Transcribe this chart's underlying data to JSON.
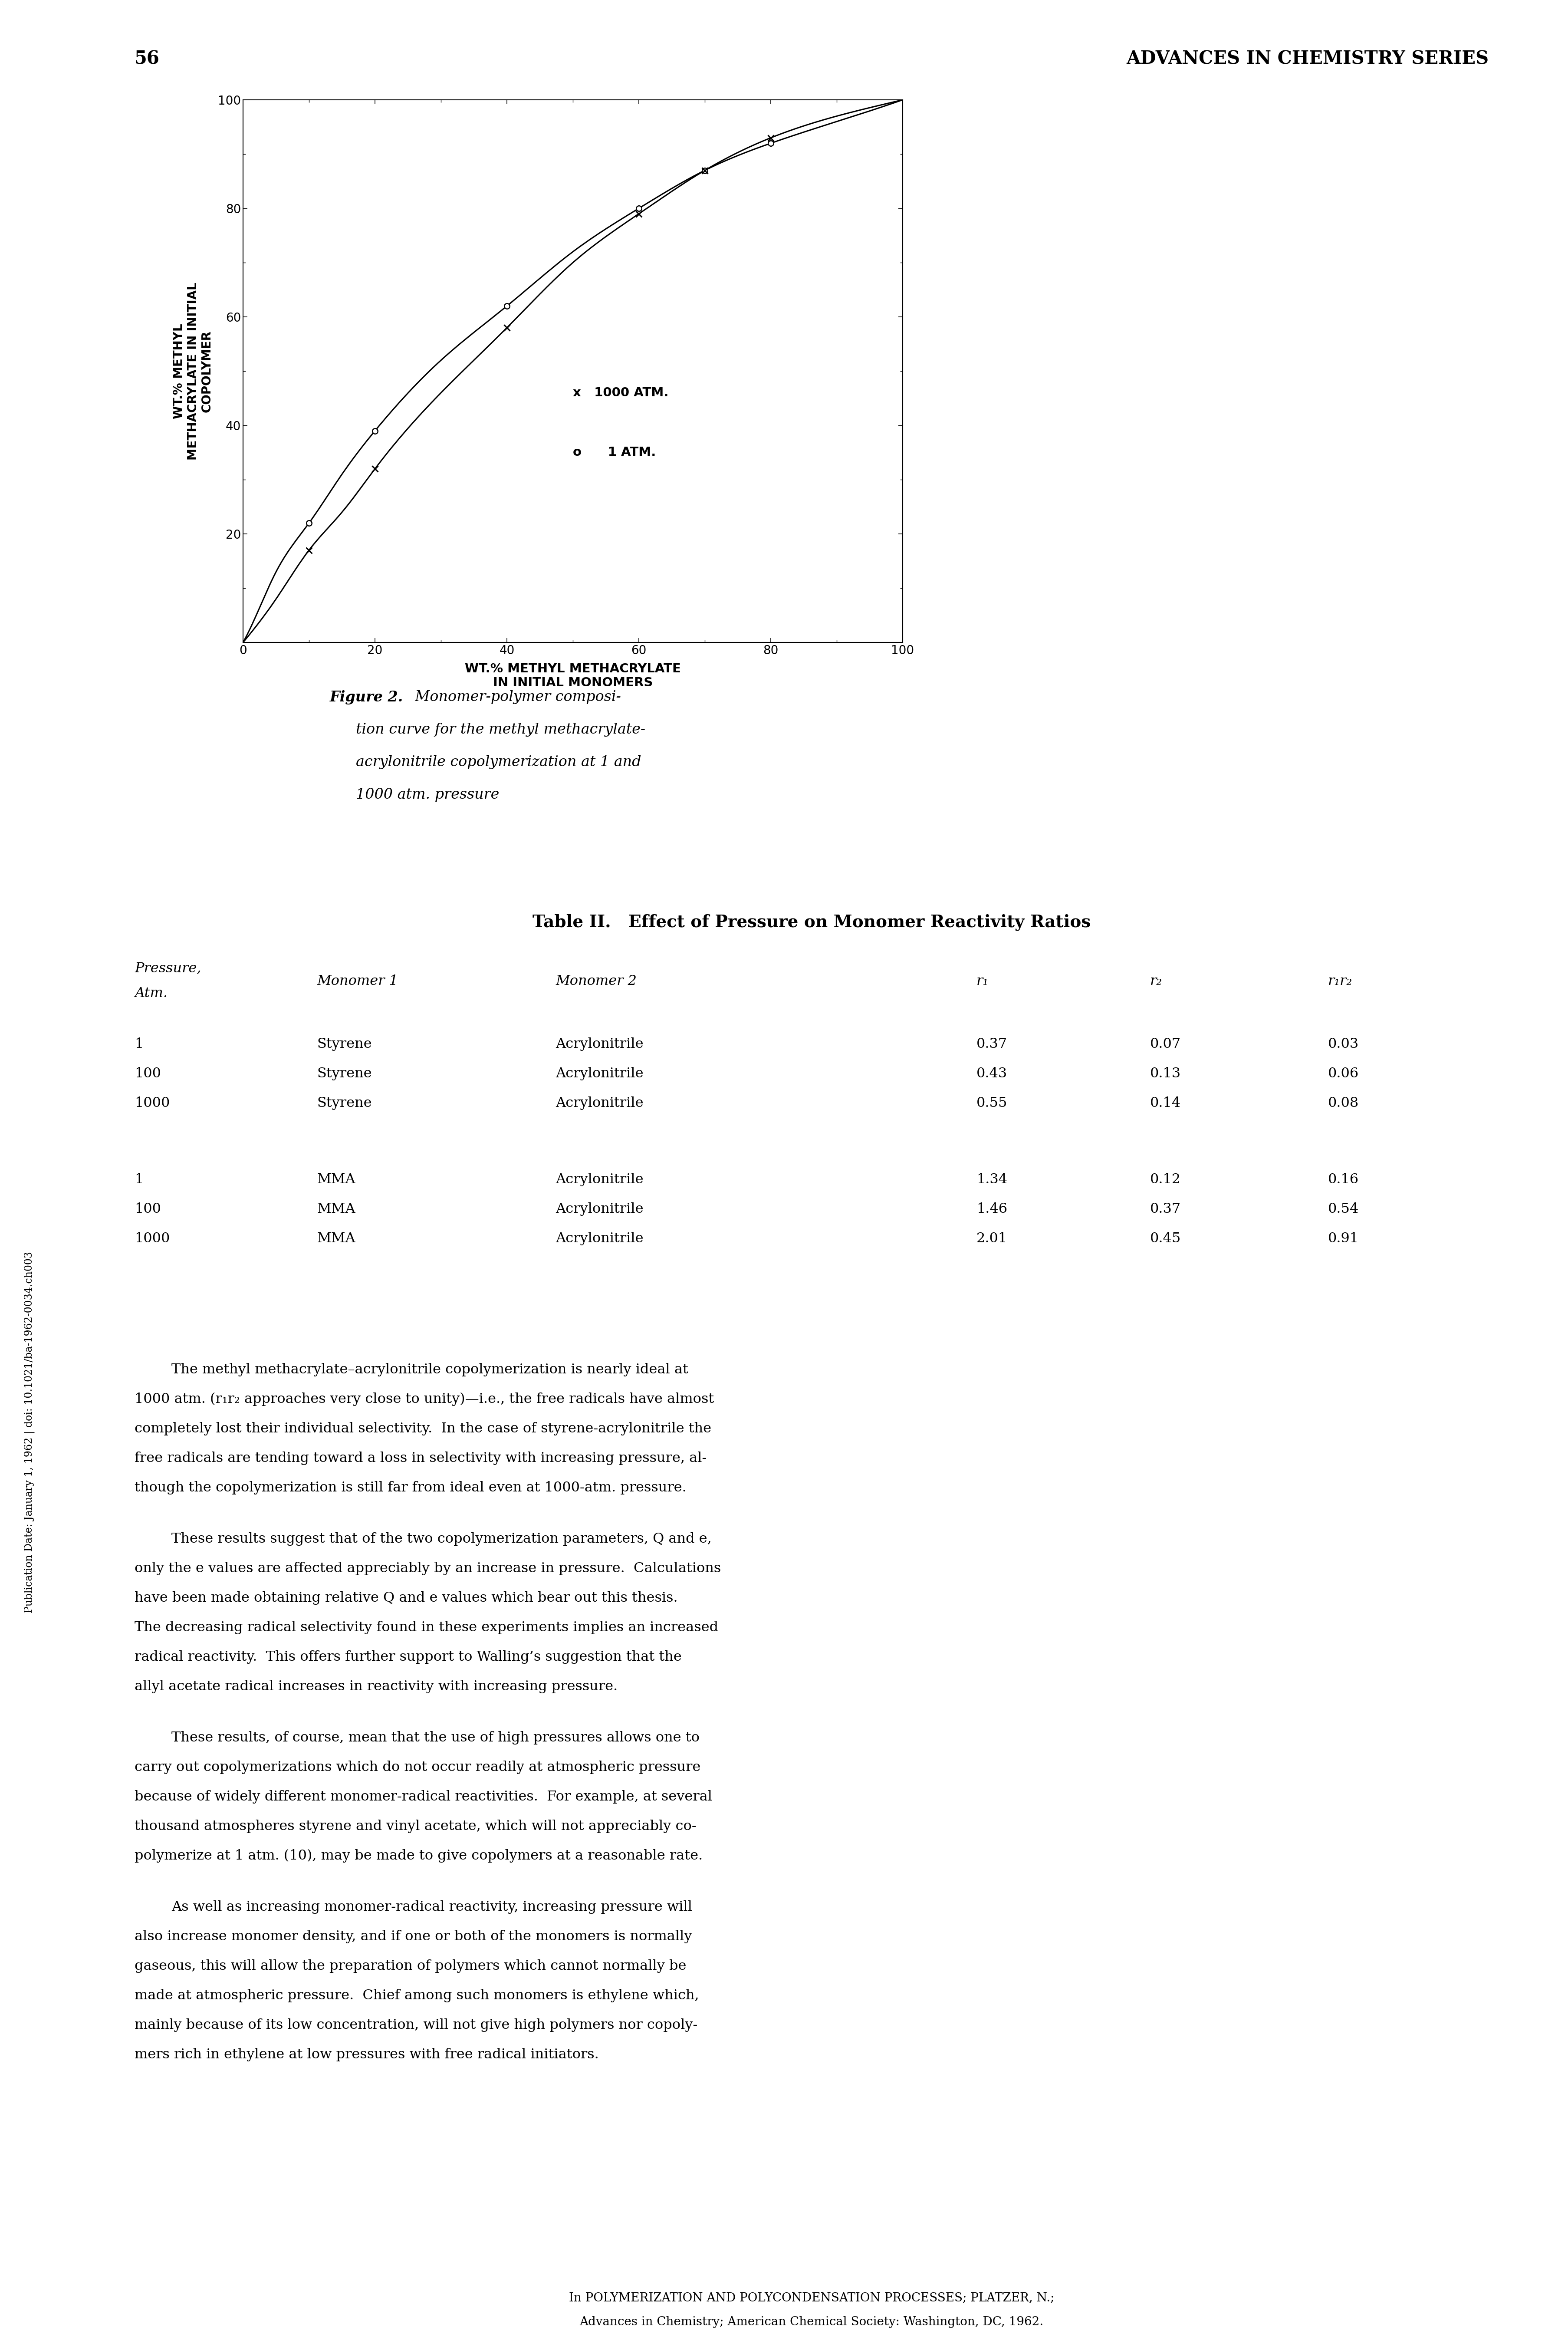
{
  "page_number": "56",
  "header_right": "ADVANCES IN CHEMISTRY SERIES",
  "table_title_bold": "Table II.",
  "table_title_rest": "   Effect of Pressure on Monomer Reactivity Ratios",
  "table_headers_italic": [
    "Pressure,",
    "Atm.",
    "Monomer 1",
    "Monomer 2",
    "r₁",
    "r₂",
    "r₁r₂"
  ],
  "table_data": [
    [
      "1",
      "Styrene",
      "Acrylonitrile",
      "0.37",
      "0.07",
      "0.03"
    ],
    [
      "100",
      "Styrene",
      "Acrylonitrile",
      "0.43",
      "0.13",
      "0.06"
    ],
    [
      "1000",
      "Styrene",
      "Acrylonitrile",
      "0.55",
      "0.14",
      "0.08"
    ],
    [
      "",
      "",
      "",
      "",
      "",
      ""
    ],
    [
      "1",
      "MMA",
      "Acrylonitrile",
      "1.34",
      "0.12",
      "0.16"
    ],
    [
      "100",
      "MMA",
      "Acrylonitrile",
      "1.46",
      "0.37",
      "0.54"
    ],
    [
      "1000",
      "MMA",
      "Acrylonitrile",
      "2.01",
      "0.45",
      "0.91"
    ]
  ],
  "body_paragraphs": [
    {
      "indent": true,
      "lines": [
        "The methyl methacrylate–acrylonitrile copolymerization is nearly ideal at",
        "1000 atm. (r₁r₂ approaches very close to unity)—i.e., the free radicals have almost",
        "completely lost their individual selectivity.  In the case of styrene-acrylonitrile the",
        "free radicals are tending toward a loss in selectivity with increasing pressure, al-",
        "though the copolymerization is still far from ideal even at 1000-atm. pressure."
      ]
    },
    {
      "indent": true,
      "lines": [
        "These results suggest that of the two copolymerization parameters, Q and e,",
        "only the e values are affected appreciably by an increase in pressure.  Calculations",
        "have been made obtaining relative Q and e values which bear out this thesis.",
        "The decreasing radical selectivity found in these experiments implies an increased",
        "radical reactivity.  This offers further support to Walling’s suggestion that the",
        "allyl acetate radical increases in reactivity with increasing pressure."
      ]
    },
    {
      "indent": true,
      "lines": [
        "These results, of course, mean that the use of high pressures allows one to",
        "carry out copolymerizations which do not occur readily at atmospheric pressure",
        "because of widely different monomer-radical reactivities.  For example, at several",
        "thousand atmospheres styrene and vinyl acetate, which will not appreciably co-",
        "polymerize at 1 atm. (10), may be made to give copolymers at a reasonable rate."
      ]
    },
    {
      "indent": true,
      "lines": [
        "As well as increasing monomer-radical reactivity, increasing pressure will",
        "also increase monomer density, and if one or both of the monomers is normally",
        "gaseous, this will allow the preparation of polymers which cannot normally be",
        "made at atmospheric pressure.  Chief among such monomers is ethylene which,",
        "mainly because of its low concentration, will not give high polymers nor copoly-",
        "mers rich in ethylene at low pressures with free radical initiators."
      ]
    }
  ],
  "footer_lines": [
    "In POLYMERIZATION AND POLYCONDENSATION PROCESSES; PLATZER, N.;",
    "Advances in Chemistry; American Chemical Society: Washington, DC, 1962."
  ],
  "sidebar_text": "Publication Date: January 1, 1962 | doi: 10.1021/ba-1962-0034.ch003",
  "caption_lines": [
    "Figure 2.   Monomer-polymer composi-",
    "tion curve for the methyl methacrylate-",
    "acrylonitrile copolymerization at 1 and",
    "1000 atm. pressure"
  ],
  "plot": {
    "x_ticks": [
      0,
      20,
      40,
      60,
      80,
      100
    ],
    "y_ticks": [
      20,
      40,
      60,
      80,
      100
    ],
    "curve_1atm_x": [
      0,
      2,
      5,
      10,
      15,
      20,
      30,
      40,
      50,
      60,
      70,
      80,
      90,
      100
    ],
    "curve_1atm_y": [
      0,
      5,
      13,
      22,
      31,
      39,
      52,
      62,
      72,
      80,
      87,
      92,
      96,
      100
    ],
    "curve_1000atm_x": [
      0,
      2,
      5,
      10,
      15,
      20,
      30,
      40,
      50,
      60,
      70,
      80,
      90,
      100
    ],
    "curve_1000atm_y": [
      0,
      3,
      8,
      17,
      24,
      32,
      46,
      58,
      70,
      79,
      87,
      93,
      97,
      100
    ],
    "data_1atm_x": [
      10,
      20,
      40,
      60,
      70,
      80
    ],
    "data_1atm_y": [
      22,
      39,
      62,
      80,
      87,
      92
    ],
    "data_1000atm_x": [
      10,
      20,
      40,
      60,
      70,
      80
    ],
    "data_1000atm_y": [
      17,
      32,
      58,
      79,
      87,
      93
    ]
  },
  "background_color": "#ffffff",
  "text_color": "#000000"
}
